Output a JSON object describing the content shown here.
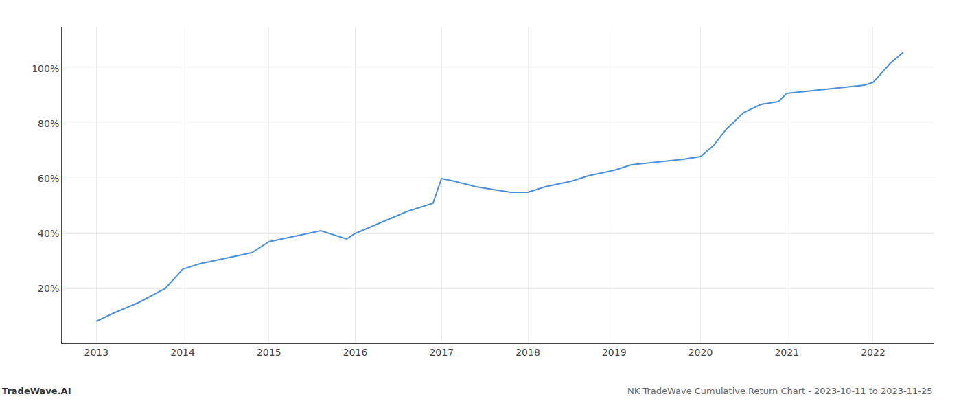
{
  "chart_data": {
    "type": "line",
    "x": [
      2013.0,
      2013.2,
      2013.5,
      2013.8,
      2014.0,
      2014.2,
      2014.5,
      2014.8,
      2015.0,
      2015.3,
      2015.6,
      2015.9,
      2016.0,
      2016.3,
      2016.6,
      2016.9,
      2017.0,
      2017.15,
      2017.4,
      2017.6,
      2017.8,
      2018.0,
      2018.2,
      2018.5,
      2018.7,
      2019.0,
      2019.2,
      2019.5,
      2019.8,
      2020.0,
      2020.15,
      2020.3,
      2020.5,
      2020.7,
      2020.9,
      2021.0,
      2021.3,
      2021.6,
      2021.9,
      2022.0,
      2022.2,
      2022.35
    ],
    "values": [
      8,
      11,
      15,
      20,
      27,
      29,
      31,
      33,
      37,
      39,
      41,
      38,
      40,
      44,
      48,
      51,
      60,
      59,
      57,
      56,
      55,
      55,
      57,
      59,
      61,
      63,
      65,
      66,
      67,
      68,
      72,
      78,
      84,
      87,
      88,
      91,
      92,
      93,
      94,
      95,
      102,
      106
    ],
    "color": "#4a90d9",
    "xlim": [
      2012.6,
      2022.7
    ],
    "xticks": [
      2013,
      2014,
      2015,
      2016,
      2017,
      2018,
      2019,
      2020,
      2021,
      2022
    ],
    "ylim": [
      0,
      115
    ],
    "yticks": [
      {
        "value": 20,
        "label": "20%"
      },
      {
        "value": 40,
        "label": "40%"
      },
      {
        "value": 60,
        "label": "60%"
      },
      {
        "value": 80,
        "label": "80%"
      },
      {
        "value": 100,
        "label": "100%"
      }
    ],
    "grid": true,
    "annotations": [
      "TradeWave.AI",
      "NK TradeWave Cumulative Return Chart - 2023-10-11 to 2023-11-25"
    ]
  }
}
